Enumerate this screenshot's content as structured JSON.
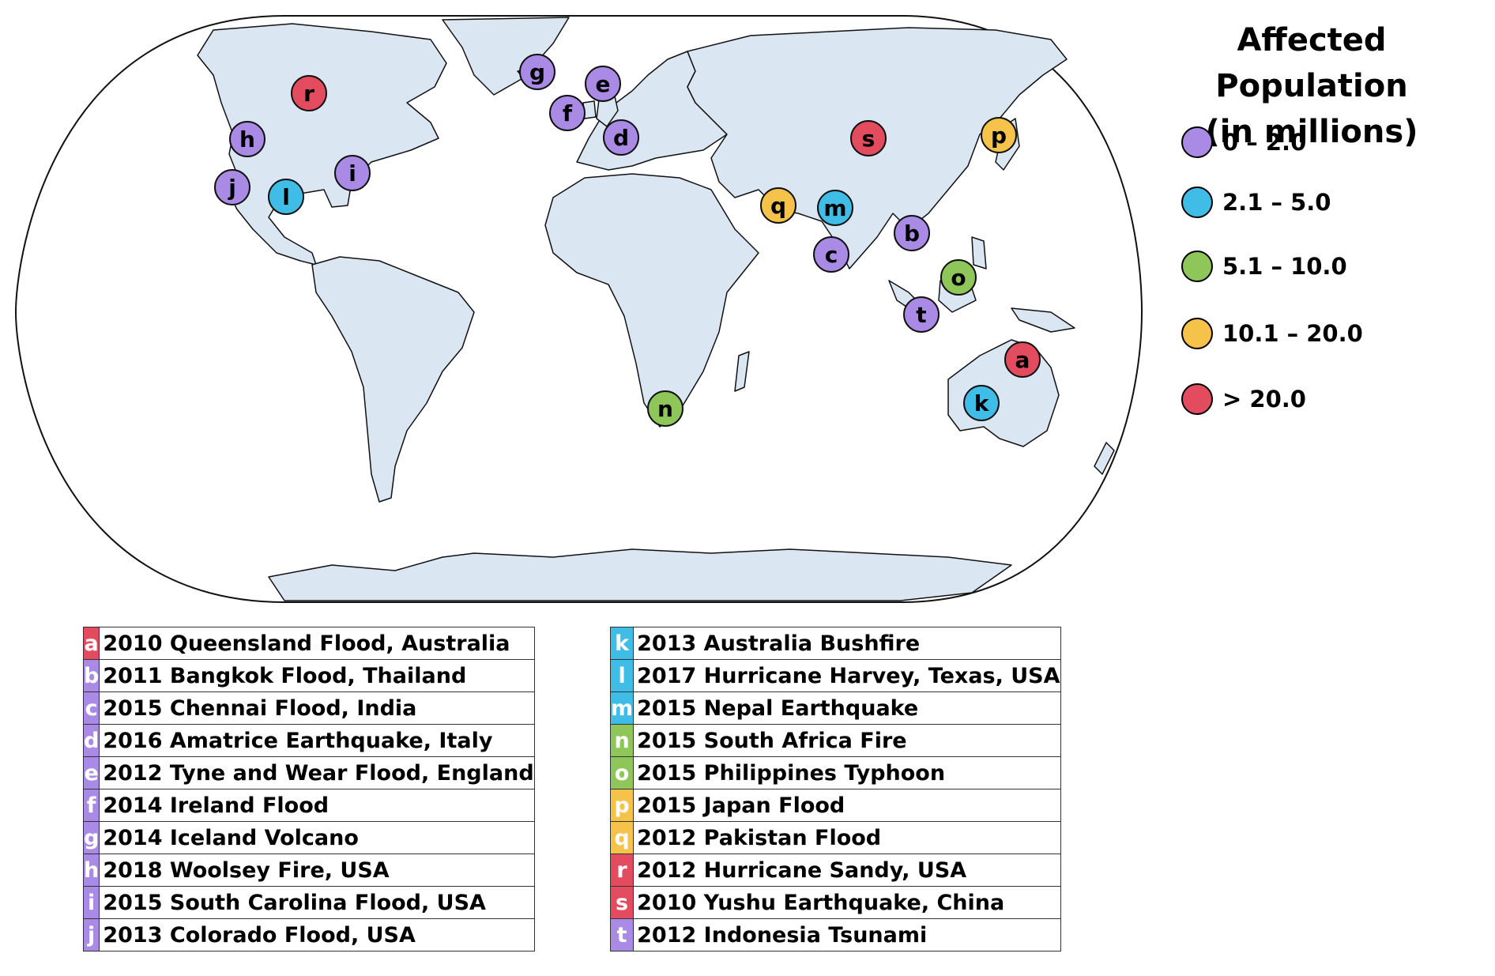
{
  "legend": {
    "title_line1": "Affected Population",
    "title_line2": "(in millions)",
    "items": [
      {
        "label": "0 – 2.0",
        "color": "#a98be6"
      },
      {
        "label": "2.1 – 5.0",
        "color": "#3fbde6"
      },
      {
        "label": "5.1 – 10.0",
        "color": "#8ec65a"
      },
      {
        "label": "10.1 – 20.0",
        "color": "#f5c24a"
      },
      {
        "label": "> 20.0",
        "color": "#e34b5e"
      }
    ]
  },
  "colors": {
    "land": "#dbe6f3",
    "ocean": "#ffffff",
    "coast": "#111111"
  },
  "events": [
    {
      "code": "a",
      "label": "2010 Queensland Flood, Australia",
      "category": 4
    },
    {
      "code": "b",
      "label": "2011 Bangkok Flood, Thailand",
      "category": 0
    },
    {
      "code": "c",
      "label": "2015 Chennai Flood, India",
      "category": 0
    },
    {
      "code": "d",
      "label": "2016 Amatrice Earthquake, Italy",
      "category": 0
    },
    {
      "code": "e",
      "label": "2012 Tyne and Wear Flood, England",
      "category": 0
    },
    {
      "code": "f",
      "label": "2014 Ireland Flood",
      "category": 0
    },
    {
      "code": "g",
      "label": "2014 Iceland Volcano",
      "category": 0
    },
    {
      "code": "h",
      "label": "2018 Woolsey Fire, USA",
      "category": 0
    },
    {
      "code": "i",
      "label": "2015 South Carolina Flood, USA",
      "category": 0
    },
    {
      "code": "j",
      "label": "2013 Colorado Flood, USA",
      "category": 0
    },
    {
      "code": "k",
      "label": "2013 Australia Bushfire",
      "category": 1
    },
    {
      "code": "l",
      "label": "2017 Hurricane Harvey, Texas, USA",
      "category": 1
    },
    {
      "code": "m",
      "label": "2015 Nepal Earthquake",
      "category": 1
    },
    {
      "code": "n",
      "label": "2015 South Africa Fire",
      "category": 2
    },
    {
      "code": "o",
      "label": "2015 Philippines Typhoon",
      "category": 2
    },
    {
      "code": "p",
      "label": "2015 Japan Flood",
      "category": 3
    },
    {
      "code": "q",
      "label": "2012 Pakistan Flood",
      "category": 3
    },
    {
      "code": "r",
      "label": "2012 Hurricane Sandy, USA",
      "category": 4
    },
    {
      "code": "s",
      "label": "2010 Yushu Earthquake, China",
      "category": 4
    },
    {
      "code": "t",
      "label": "2012 Indonesia Tsunami",
      "category": 0
    }
  ]
}
